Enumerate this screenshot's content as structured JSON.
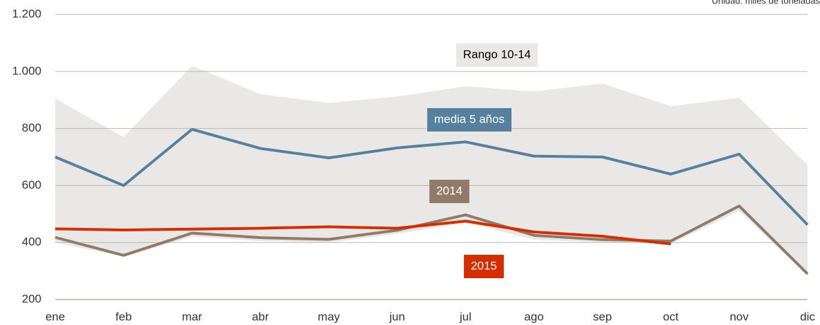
{
  "chart_data": {
    "type": "line",
    "unit_note": "Unidad: miles de toneladas",
    "categories": [
      "ene",
      "feb",
      "mar",
      "abr",
      "may",
      "jun",
      "jul",
      "ago",
      "sep",
      "oct",
      "nov",
      "dic"
    ],
    "range": {
      "name": "Rango 10-14",
      "color": "#e9e8e6",
      "upper": [
        905,
        770,
        1020,
        920,
        890,
        912,
        948,
        930,
        958,
        878,
        908,
        672
      ],
      "lower": [
        400,
        350,
        420,
        405,
        400,
        430,
        470,
        410,
        400,
        395,
        510,
        285
      ]
    },
    "series": [
      {
        "name": "media 5 años",
        "color": "#55819e",
        "values": [
          700,
          600,
          797,
          730,
          697,
          732,
          753,
          703,
          700,
          640,
          710,
          462
        ]
      },
      {
        "name": "2014",
        "color": "#8f7b68",
        "values": [
          418,
          355,
          433,
          417,
          411,
          443,
          497,
          425,
          410,
          405,
          528,
          290
        ]
      },
      {
        "name": "2015",
        "color": "#d62d00",
        "values": [
          448,
          444,
          447,
          450,
          455,
          450,
          475,
          437,
          422,
          395,
          null,
          null
        ]
      }
    ],
    "ylim": [
      200,
      1200
    ],
    "yticks": [
      200,
      400,
      600,
      800,
      {
        "value": 1000,
        "label": "1.000"
      },
      {
        "value": 1200,
        "label": "1.200"
      }
    ],
    "grid": true
  }
}
